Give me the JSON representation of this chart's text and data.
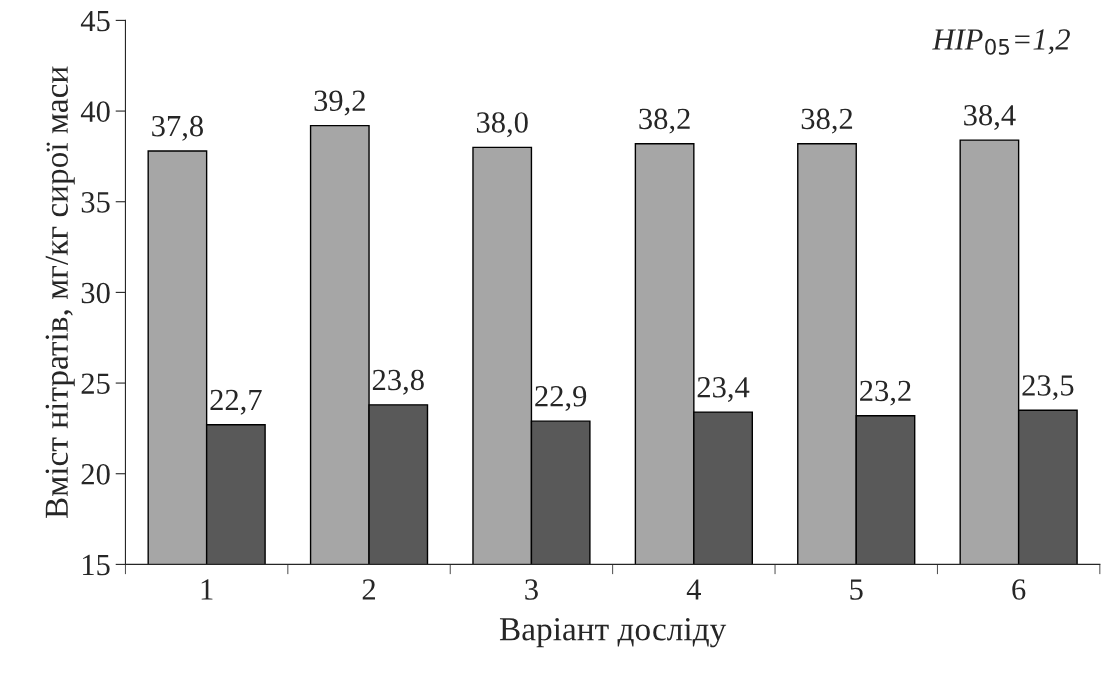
{
  "chart_data": {
    "type": "bar",
    "xlabel": "Варіант досліду",
    "ylabel": "Вміст нітратів, мг/кг сирої маси",
    "categories": [
      "1",
      "2",
      "3",
      "4",
      "5",
      "6"
    ],
    "series": [
      {
        "color": "#a6a6a6",
        "values": [
          37.8,
          39.2,
          38.0,
          38.2,
          38.2,
          38.4
        ],
        "value_labels": [
          "37,8",
          "39,2",
          "38,0",
          "38,2",
          "38,2",
          "38,4"
        ]
      },
      {
        "color": "#595959",
        "values": [
          22.7,
          23.8,
          22.9,
          23.4,
          23.2,
          23.5
        ],
        "value_labels": [
          "22,7",
          "23,8",
          "22,9",
          "23,4",
          "23,2",
          "23,5"
        ]
      }
    ],
    "ylim": [
      15,
      45
    ],
    "yticks": [
      15,
      20,
      25,
      30,
      35,
      40,
      45
    ],
    "grid": false,
    "legend": false,
    "annotations": [
      "HIP$_{05}$=1,2"
    ]
  }
}
